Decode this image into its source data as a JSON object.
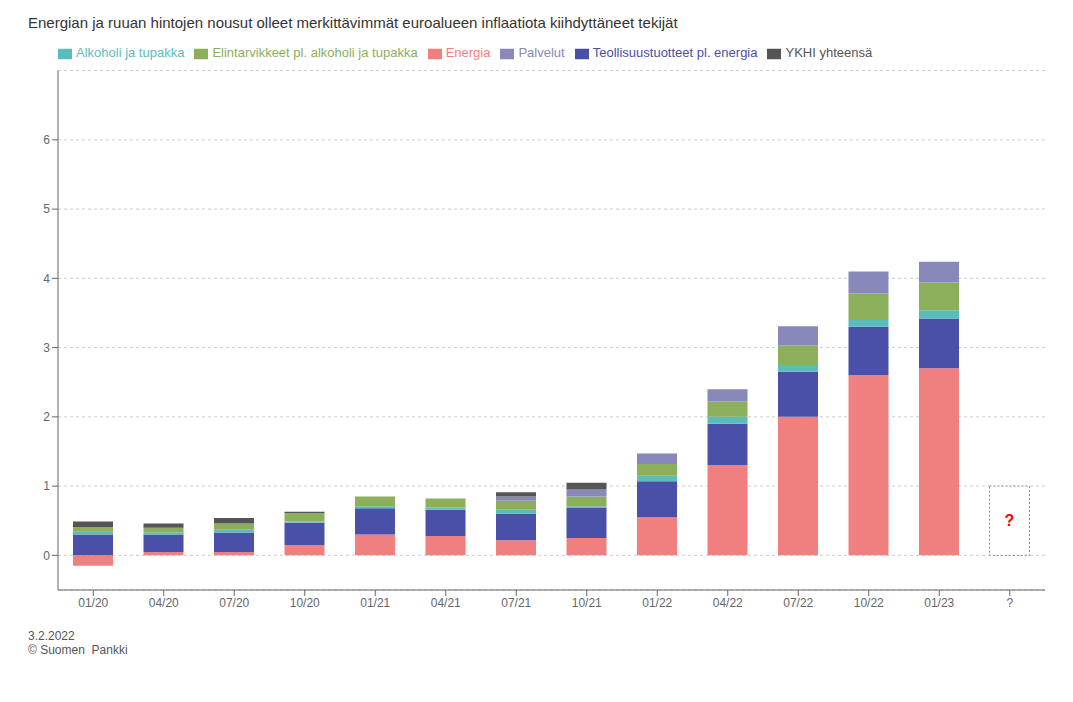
{
  "chart_data": {
    "type": "bar",
    "title": "Energian ja ruuan hintojen nousut olleet merkittävimmät euroalueen inflaatiota kiihdyttäneet tekijät",
    "stacked": true,
    "grid": true,
    "legend": "top",
    "categories": [
      "01/20",
      "04/20",
      "07/20",
      "10/20",
      "01/21",
      "04/21",
      "07/21",
      "10/21",
      "01/22",
      "04/22",
      "07/22",
      "10/22",
      "01/23",
      "?"
    ],
    "series": [
      {
        "name": "Energia",
        "color": "#F08080",
        "values": [
          -0.15,
          0.05,
          0.05,
          0.15,
          0.3,
          0.28,
          0.22,
          0.25,
          0.55,
          1.3,
          2.0,
          2.6,
          2.7,
          0.0
        ]
      },
      {
        "name": "Teollisuustuotteet pl. energia",
        "color": "#4A4FA8",
        "values": [
          0.3,
          0.25,
          0.28,
          0.32,
          0.38,
          0.38,
          0.38,
          0.44,
          0.52,
          0.6,
          0.65,
          0.7,
          0.72,
          0.0
        ]
      },
      {
        "name": "Alkoholi ja tupakka",
        "color": "#5BBCBC",
        "values": [
          0.04,
          0.03,
          0.04,
          0.02,
          0.03,
          0.03,
          0.06,
          0.02,
          0.08,
          0.1,
          0.1,
          0.1,
          0.12,
          0.0
        ]
      },
      {
        "name": "Elintarvikkeet pl. alkoholi ja tupakka",
        "color": "#8BAF5A",
        "values": [
          0.07,
          0.07,
          0.09,
          0.12,
          0.14,
          0.13,
          0.13,
          0.14,
          0.17,
          0.22,
          0.28,
          0.38,
          0.4,
          0.0
        ]
      },
      {
        "name": "Palvelut",
        "color": "#8888BB",
        "values": [
          0.0,
          0.0,
          0.0,
          0.0,
          0.0,
          0.0,
          0.06,
          0.1,
          0.15,
          0.18,
          0.28,
          0.32,
          0.3,
          0.0
        ]
      },
      {
        "name": "YKHI yhteensä",
        "color": "#555555",
        "values": [
          0.08,
          0.06,
          0.08,
          0.02,
          0.0,
          0.0,
          0.06,
          0.1,
          0.0,
          0.0,
          0.0,
          0.0,
          0.0,
          0.0
        ]
      }
    ],
    "ylim": [
      -0.5,
      7.0
    ],
    "yticks": [
      0,
      1,
      2,
      3,
      4,
      5,
      6
    ],
    "annotations": [
      {
        "text": "?",
        "x": "?",
        "value": 1.0,
        "color": "red"
      },
      {
        "text": "3.2.2022"
      },
      {
        "text": "© Suomen  Pankki"
      }
    ]
  }
}
